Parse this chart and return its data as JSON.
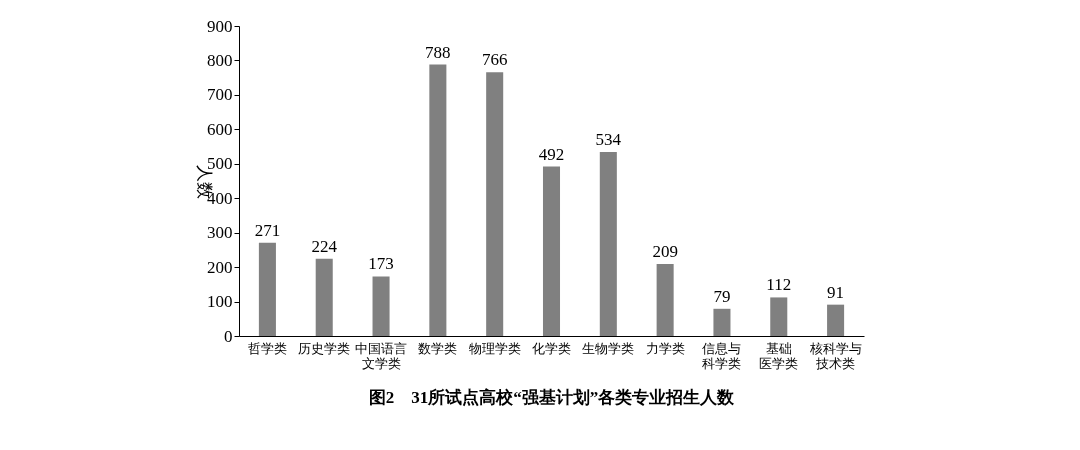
{
  "chart_data": {
    "type": "bar",
    "title": "图2　31所试点高校“强基计划”各类专业招生人数",
    "ylabel": "人数",
    "categories": [
      "哲学类",
      "历史学类",
      "中国语言文学类",
      "数学类",
      "物理学类",
      "化学类",
      "生物学类",
      "力学类",
      "信息与科学类",
      "基础医学类",
      "核科学与技术类"
    ],
    "values": [
      271,
      224,
      173,
      788,
      766,
      492,
      534,
      209,
      79,
      112,
      91
    ],
    "color": "#808080",
    "ylim": [
      0,
      900
    ],
    "yticks": [
      0,
      100,
      200,
      300,
      400,
      500,
      600,
      700,
      800,
      900
    ],
    "grid": false,
    "data_labels": true
  }
}
